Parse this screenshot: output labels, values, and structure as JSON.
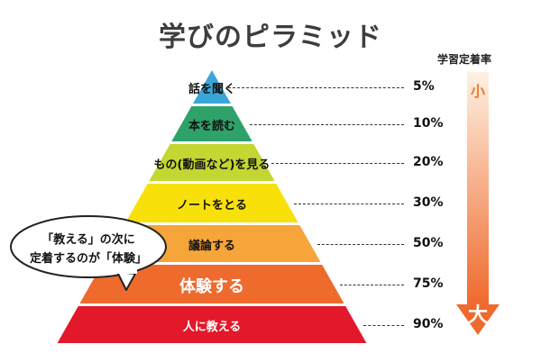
{
  "title": "学びのピラミッド",
  "rate_header": "学習定着率",
  "tiers": [
    {
      "label": "話を聞く",
      "rate": "5%",
      "color": "#3aa6d8"
    },
    {
      "label": "本を読む",
      "rate": "10%",
      "color": "#2fa26a"
    },
    {
      "label": "もの(動画など)を見る",
      "rate": "20%",
      "color": "#c3d631"
    },
    {
      "label": "ノートをとる",
      "rate": "30%",
      "color": "#f8e10a"
    },
    {
      "label": "議論する",
      "rate": "50%",
      "color": "#f6a53a"
    },
    {
      "label": "体験する",
      "rate": "75%",
      "color": "#ef6a2d"
    },
    {
      "label": "人に教える",
      "rate": "90%",
      "color": "#e3182a"
    }
  ],
  "arrow": {
    "top_label": "小",
    "bottom_label": "大",
    "color_top": "#fde3c9",
    "color_bottom": "#ef6a2d"
  },
  "bubble": {
    "line1": "「教える」の次に",
    "line2": "定着するのが「体験」"
  }
}
